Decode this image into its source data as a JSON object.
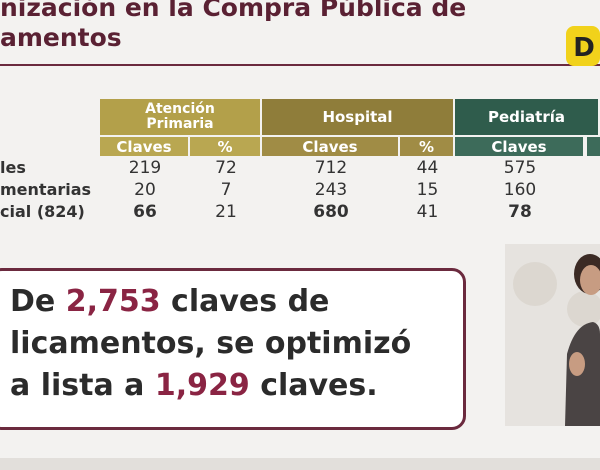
{
  "header": {
    "title_lines": [
      "nización en la Compra Pública de",
      "amentos"
    ],
    "logo": "D"
  },
  "table": {
    "groups": [
      "Atención Primaria",
      "Hospital",
      "Pediatría"
    ],
    "subheaders": [
      "Claves",
      "%",
      "Claves",
      "%",
      "Claves"
    ],
    "rows": [
      {
        "label": "les",
        "cells": [
          219,
          72,
          712,
          44,
          575
        ]
      },
      {
        "label": "mentarias",
        "cells": [
          20,
          7,
          243,
          15,
          160
        ]
      },
      {
        "label": "cial (824)",
        "cells": [
          66,
          21,
          680,
          41,
          78
        ]
      }
    ]
  },
  "callout": {
    "lines": [
      [
        "De ",
        "2,753",
        " claves de"
      ],
      [
        "licamentos, se optimizó"
      ],
      [
        "a lista a ",
        "1,929",
        " claves."
      ]
    ]
  }
}
